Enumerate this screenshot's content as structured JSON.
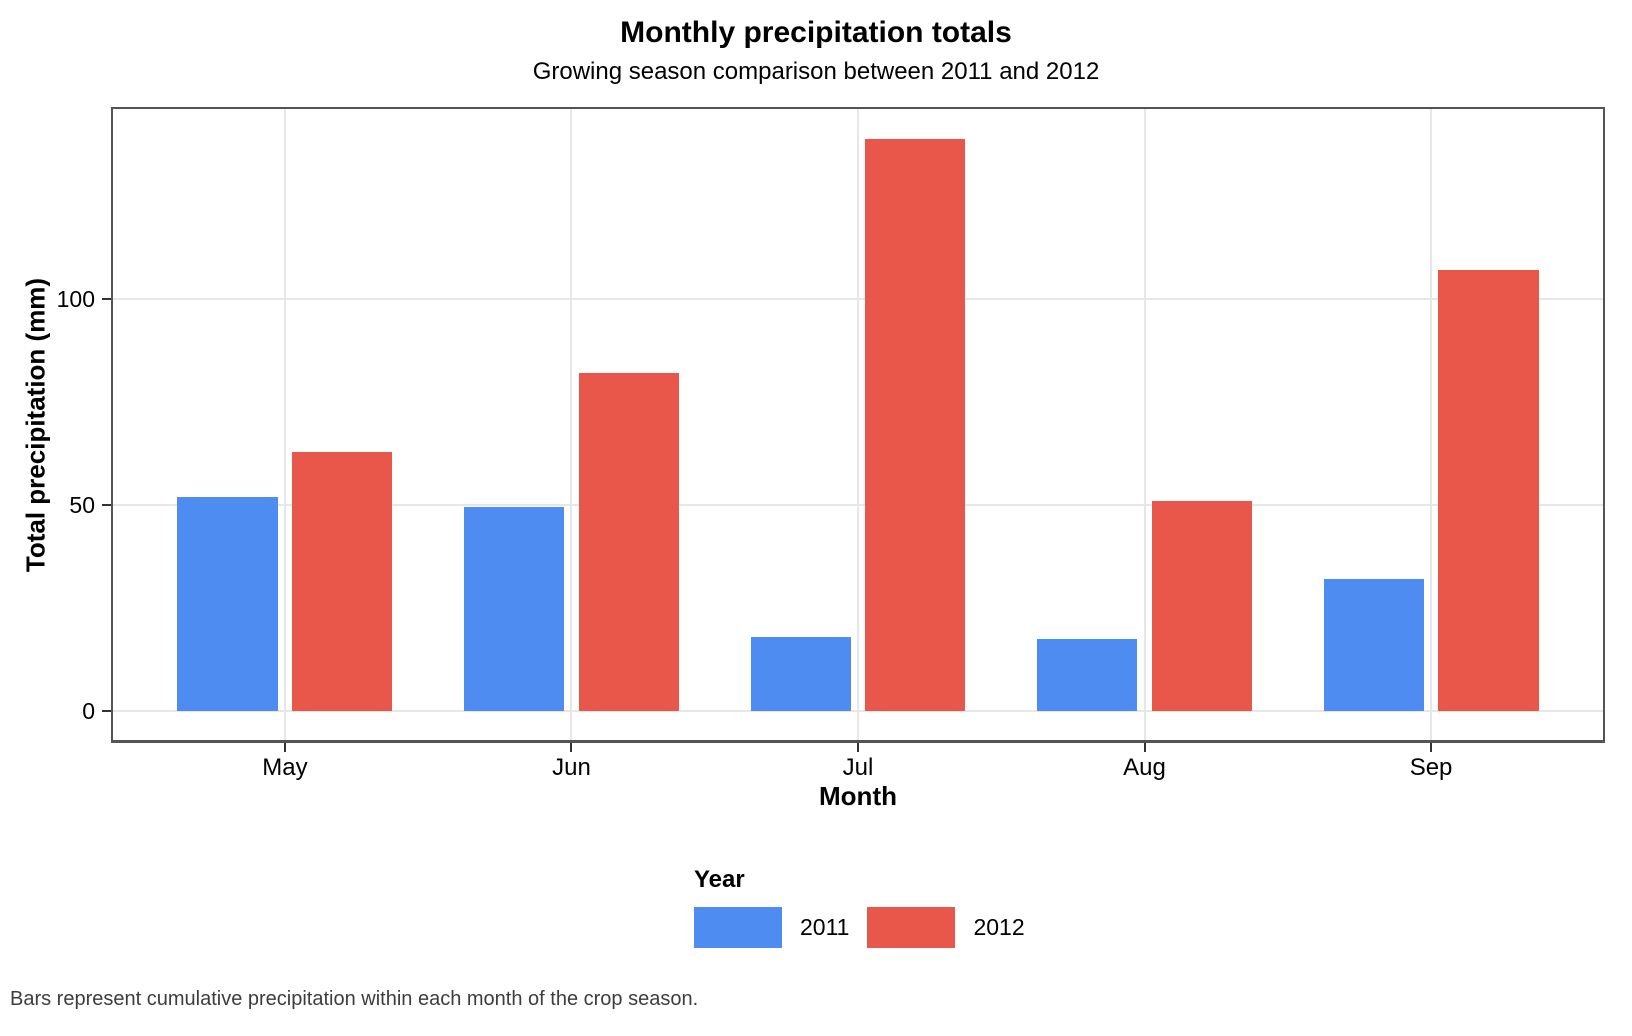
{
  "chart_data": {
    "type": "bar",
    "title": "Monthly precipitation totals",
    "subtitle": "Growing season comparison between 2011 and 2012",
    "caption": "Bars represent cumulative precipitation within each month of the crop season.",
    "xlabel": "Month",
    "ylabel": "Total precipitation (mm)",
    "categories": [
      "May",
      "Jun",
      "Jul",
      "Aug",
      "Sep"
    ],
    "series": [
      {
        "name": "2011",
        "color": "#4f8cf2",
        "values": [
          52,
          49.5,
          18,
          17.5,
          32
        ]
      },
      {
        "name": "2012",
        "color": "#e9564a",
        "values": [
          63,
          82,
          139,
          51,
          107
        ]
      }
    ],
    "legend": {
      "title": "Year",
      "position": "bottom",
      "entries": [
        "2011",
        "2012"
      ]
    },
    "yticks": [
      0,
      50,
      100
    ],
    "ylim": [
      -7,
      146.2
    ],
    "grid": "major",
    "bar_layout": {
      "dodge_width": 0.8,
      "bar_width": 0.35
    },
    "colors": {
      "panel_border": "#545454",
      "gridline": "#e7e7e7",
      "tick": "#333333",
      "text": "#000000",
      "caption_text": "#3d3d3d",
      "background": "#ffffff"
    }
  }
}
